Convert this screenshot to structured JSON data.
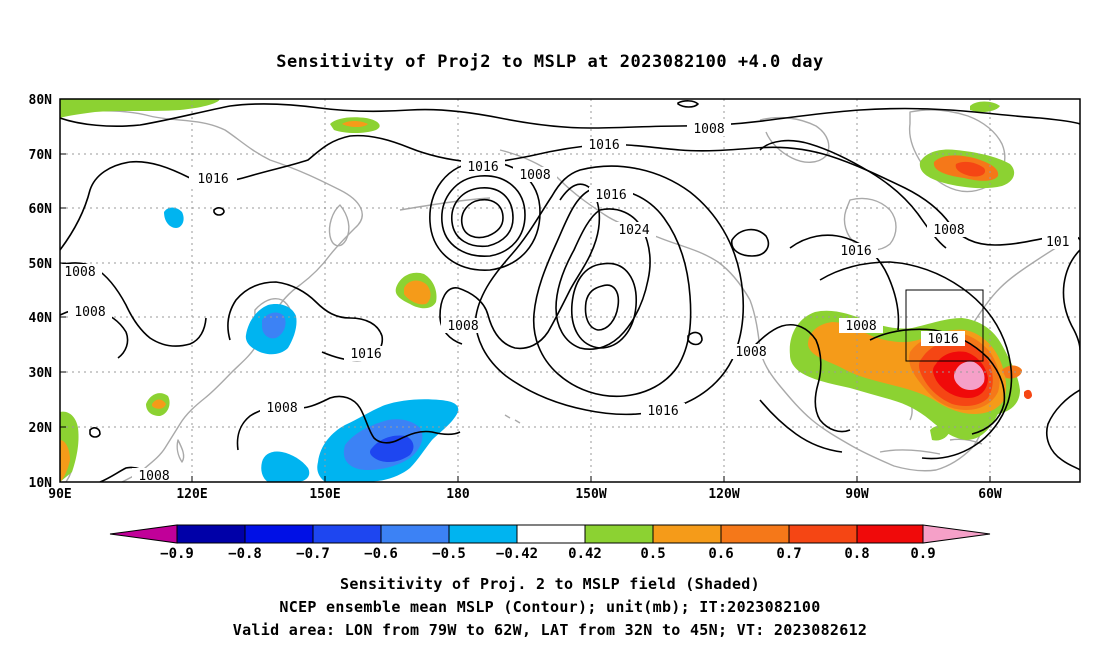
{
  "title": "Sensitivity of Proj2 to MSLP at 2023082100 +4.0 day",
  "map": {
    "lon_ticks": [
      "90E",
      "120E",
      "150E",
      "180",
      "150W",
      "120W",
      "90W",
      "60W"
    ],
    "lat_ticks": [
      "80N",
      "70N",
      "60N",
      "50N",
      "40N",
      "30N",
      "20N",
      "10N"
    ],
    "contour_labels": [
      "1016",
      "1008",
      "1016",
      "1008",
      "1008",
      "1016",
      "1008",
      "1016",
      "1024",
      "1016",
      "1008",
      "1008",
      "1016",
      "1008",
      "1016",
      "1008",
      "1008",
      "1008",
      "1016",
      "1008",
      "101"
    ],
    "colors": {
      "continents": "#a9a9a9",
      "contours": "#000000",
      "grid": "#9a9a9a",
      "neg_shades": [
        "#c10099",
        "#0000a8",
        "#0010e6",
        "#1e46f0",
        "#3c82f5",
        "#00b4f0"
      ],
      "pos_shades": [
        "#8cd232",
        "#f59b19",
        "#f57819",
        "#f54614",
        "#f00a0a",
        "#f5a0c8"
      ]
    }
  },
  "colorbar": {
    "labels": [
      "−0.9",
      "−0.8",
      "−0.7",
      "−0.6",
      "−0.5",
      "−0.42",
      "0.42",
      "0.5",
      "0.6",
      "0.7",
      "0.8",
      "0.9"
    ]
  },
  "caption": {
    "line1": "Sensitivity of Proj. 2 to MSLP field (Shaded)",
    "line2": "NCEP ensemble mean MSLP (Contour); unit(mb); IT:2023082100",
    "line3": "Valid area: LON from 79W to 62W, LAT from 32N to 45N; VT: 2023082612"
  }
}
